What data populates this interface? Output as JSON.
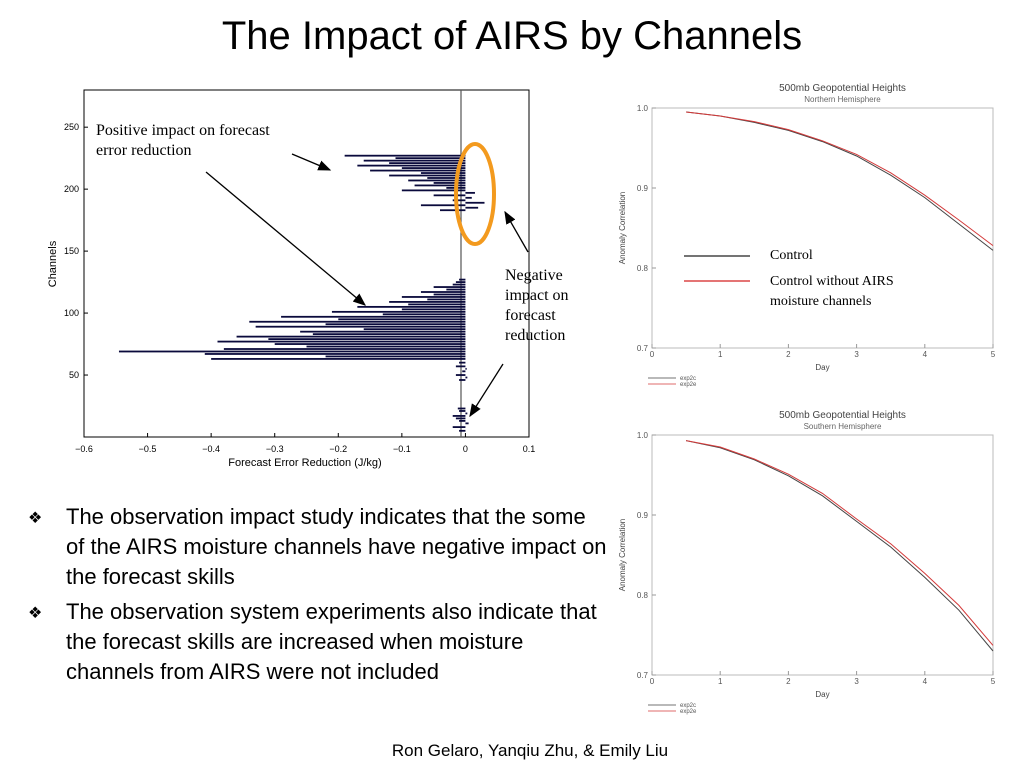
{
  "slide": {
    "title": "The Impact of AIRS by Channels",
    "credit": "Ron Gelaro, Yanqiu Zhu, & Emily Liu",
    "bullets": [
      "The observation impact study indicates that the some of the AIRS moisture channels have negative impact on the forecast skills",
      "The observation system experiments also indicate that the forecast skills are increased when moisture channels from AIRS were not included"
    ],
    "bullet_icon": "diamond-bullet-icon"
  },
  "annotations": {
    "positive": "Positive impact on forecast error reduction",
    "negative": "Negative impact on forecast reduction",
    "legend_control": "Control",
    "legend_noairs": "Control without AIRS moisture channels",
    "highlight_color": "#f39a1e"
  },
  "chart_data": [
    {
      "type": "bar",
      "orientation": "horizontal",
      "xlabel": "Forecast Error Reduction (J/kg)",
      "ylabel": "Channels",
      "xlim": [
        -0.6,
        0.1
      ],
      "ylim": [
        0,
        280
      ],
      "xticks": [
        "−0.6",
        "−0.5",
        "−0.4",
        "−0.3",
        "−0.2",
        "−0.1",
        "0",
        "0.1"
      ],
      "yticks": [
        "50",
        "100",
        "150",
        "200",
        "250"
      ],
      "bar_color": "#0a0a3c",
      "bars": [
        {
          "c": 5,
          "v": -0.01
        },
        {
          "c": 8,
          "v": -0.02
        },
        {
          "c": 11,
          "v": 0.005
        },
        {
          "c": 13,
          "v": -0.01
        },
        {
          "c": 15,
          "v": -0.015
        },
        {
          "c": 17,
          "v": -0.02
        },
        {
          "c": 19,
          "v": 0.003
        },
        {
          "c": 21,
          "v": -0.01
        },
        {
          "c": 23,
          "v": -0.012
        },
        {
          "c": 46,
          "v": -0.01
        },
        {
          "c": 48,
          "v": 0.003
        },
        {
          "c": 50,
          "v": -0.015
        },
        {
          "c": 53,
          "v": -0.005
        },
        {
          "c": 55,
          "v": 0.002
        },
        {
          "c": 57,
          "v": -0.015
        },
        {
          "c": 60,
          "v": -0.01
        },
        {
          "c": 63,
          "v": -0.4
        },
        {
          "c": 65,
          "v": -0.22
        },
        {
          "c": 67,
          "v": -0.41
        },
        {
          "c": 69,
          "v": -0.545
        },
        {
          "c": 71,
          "v": -0.38
        },
        {
          "c": 73,
          "v": -0.25
        },
        {
          "c": 75,
          "v": -0.3
        },
        {
          "c": 77,
          "v": -0.39
        },
        {
          "c": 79,
          "v": -0.31
        },
        {
          "c": 81,
          "v": -0.36
        },
        {
          "c": 83,
          "v": -0.24
        },
        {
          "c": 85,
          "v": -0.26
        },
        {
          "c": 87,
          "v": -0.16
        },
        {
          "c": 89,
          "v": -0.33
        },
        {
          "c": 91,
          "v": -0.22
        },
        {
          "c": 93,
          "v": -0.34
        },
        {
          "c": 95,
          "v": -0.2
        },
        {
          "c": 97,
          "v": -0.29
        },
        {
          "c": 99,
          "v": -0.13
        },
        {
          "c": 101,
          "v": -0.21
        },
        {
          "c": 103,
          "v": -0.1
        },
        {
          "c": 105,
          "v": -0.17
        },
        {
          "c": 107,
          "v": -0.09
        },
        {
          "c": 109,
          "v": -0.12
        },
        {
          "c": 111,
          "v": -0.06
        },
        {
          "c": 113,
          "v": -0.1
        },
        {
          "c": 115,
          "v": -0.05
        },
        {
          "c": 117,
          "v": -0.07
        },
        {
          "c": 119,
          "v": -0.03
        },
        {
          "c": 121,
          "v": -0.05
        },
        {
          "c": 123,
          "v": -0.02
        },
        {
          "c": 125,
          "v": -0.015
        },
        {
          "c": 127,
          "v": -0.01
        },
        {
          "c": 183,
          "v": -0.04
        },
        {
          "c": 185,
          "v": 0.02
        },
        {
          "c": 187,
          "v": -0.07
        },
        {
          "c": 189,
          "v": 0.03
        },
        {
          "c": 191,
          "v": -0.02
        },
        {
          "c": 193,
          "v": 0.01
        },
        {
          "c": 195,
          "v": -0.05
        },
        {
          "c": 197,
          "v": 0.015
        },
        {
          "c": 199,
          "v": -0.1
        },
        {
          "c": 201,
          "v": -0.03
        },
        {
          "c": 203,
          "v": -0.08
        },
        {
          "c": 205,
          "v": -0.05
        },
        {
          "c": 207,
          "v": -0.09
        },
        {
          "c": 209,
          "v": -0.06
        },
        {
          "c": 211,
          "v": -0.12
        },
        {
          "c": 213,
          "v": -0.07
        },
        {
          "c": 215,
          "v": -0.15
        },
        {
          "c": 217,
          "v": -0.1
        },
        {
          "c": 219,
          "v": -0.17
        },
        {
          "c": 221,
          "v": -0.12
        },
        {
          "c": 223,
          "v": -0.16
        },
        {
          "c": 225,
          "v": -0.11
        },
        {
          "c": 227,
          "v": -0.19
        }
      ]
    },
    {
      "type": "line",
      "title": "500mb Geopotential Heights",
      "subtitle": "Northern Hemisphere",
      "xlabel": "Day",
      "ylabel": "Anomaly Correlation",
      "xlim": [
        0,
        5
      ],
      "ylim": [
        0.7,
        1.0
      ],
      "xticks": [
        "0",
        "1",
        "2",
        "3",
        "4",
        "5"
      ],
      "yticks": [
        "0.7",
        "0.8",
        "0.9",
        "1.0"
      ],
      "legend": [
        "exp2c",
        "exp2e"
      ],
      "series": [
        {
          "name": "exp2c",
          "color": "#444444",
          "x": [
            0.5,
            1,
            1.5,
            2,
            2.5,
            3,
            3.5,
            4,
            4.5,
            5
          ],
          "y": [
            0.995,
            0.99,
            0.982,
            0.972,
            0.958,
            0.94,
            0.916,
            0.888,
            0.855,
            0.822
          ]
        },
        {
          "name": "exp2e",
          "color": "#d43a3a",
          "x": [
            0.5,
            1,
            1.5,
            2,
            2.5,
            3,
            3.5,
            4,
            4.5,
            5
          ],
          "y": [
            0.995,
            0.99,
            0.983,
            0.973,
            0.959,
            0.942,
            0.919,
            0.891,
            0.86,
            0.828
          ]
        }
      ]
    },
    {
      "type": "line",
      "title": "500mb Geopotential Heights",
      "subtitle": "Southern Hemisphere",
      "xlabel": "Day",
      "ylabel": "Anomaly Correlation",
      "xlim": [
        0,
        5
      ],
      "ylim": [
        0.7,
        1.0
      ],
      "xticks": [
        "0",
        "1",
        "2",
        "3",
        "4",
        "5"
      ],
      "yticks": [
        "0.7",
        "0.8",
        "0.9",
        "1.0"
      ],
      "legend": [
        "exp2c",
        "exp2e"
      ],
      "series": [
        {
          "name": "exp2c",
          "color": "#444444",
          "x": [
            0.5,
            1,
            1.5,
            2,
            2.5,
            3,
            3.5,
            4,
            4.5,
            5
          ],
          "y": [
            0.993,
            0.984,
            0.969,
            0.949,
            0.924,
            0.892,
            0.86,
            0.822,
            0.781,
            0.73
          ]
        },
        {
          "name": "exp2e",
          "color": "#d43a3a",
          "x": [
            0.5,
            1,
            1.5,
            2,
            2.5,
            3,
            3.5,
            4,
            4.5,
            5
          ],
          "y": [
            0.993,
            0.985,
            0.97,
            0.951,
            0.927,
            0.895,
            0.864,
            0.827,
            0.787,
            0.737
          ]
        }
      ]
    }
  ]
}
